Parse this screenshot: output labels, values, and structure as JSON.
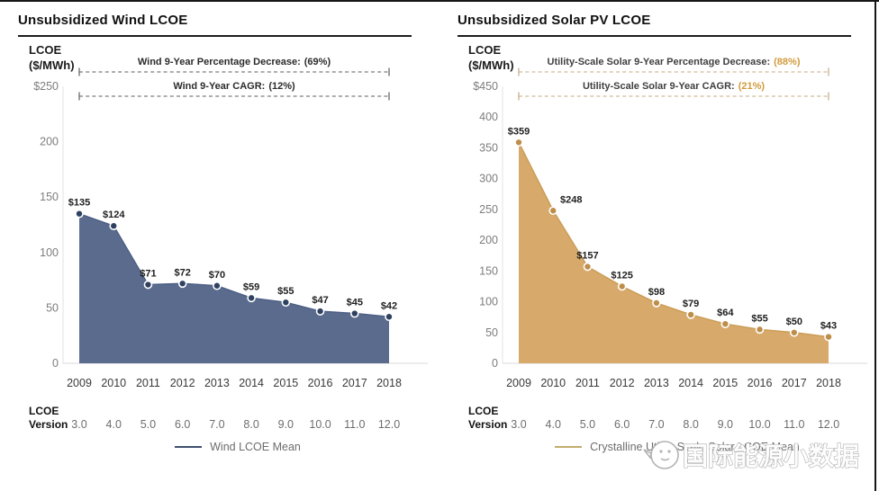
{
  "page": {
    "watermark_text": "国际能源小数据"
  },
  "chart_data": [
    {
      "type": "area",
      "title": "Unsubsidized Wind LCOE",
      "ylabel_line1": "LCOE",
      "ylabel_line2": "($/MWh)",
      "categories": [
        "2009",
        "2010",
        "2011",
        "2012",
        "2013",
        "2014",
        "2015",
        "2016",
        "2017",
        "2018"
      ],
      "values": [
        135,
        124,
        71,
        72,
        70,
        59,
        55,
        47,
        45,
        42
      ],
      "point_labels": [
        "$135",
        "$124",
        "$71",
        "$72",
        "$70",
        "$59",
        "$55",
        "$47",
        "$45",
        "$42"
      ],
      "ylim": [
        0,
        250
      ],
      "ytick_values": [
        250,
        200,
        150,
        100,
        50,
        0
      ],
      "ytick_labels": [
        "$250",
        "200",
        "150",
        "100",
        "50",
        "0"
      ],
      "annotations": [
        {
          "label": "Wind 9-Year Percentage Decrease:",
          "value": "(69%)"
        },
        {
          "label": "Wind 9-Year CAGR:",
          "value": "(12%)"
        }
      ],
      "version_label_line1": "LCOE",
      "version_label_line2": "Version",
      "versions": [
        "3.0",
        "4.0",
        "5.0",
        "6.0",
        "7.0",
        "8.0",
        "9.0",
        "10.0",
        "11.0",
        "12.0"
      ],
      "legend": "Wind LCOE Mean",
      "grid": false,
      "legend_position": "bottom-center",
      "colors": {
        "fill": "#5b6b8e",
        "line": "#4d5f85",
        "point": "#2e4160",
        "annotation_text": "#2b2b2b",
        "annotation_value": "#2b2b2b",
        "annotation_line": "#5c5c5c",
        "legend_line": "#3f4f6e"
      }
    },
    {
      "type": "area",
      "title": "Unsubsidized Solar PV LCOE",
      "ylabel_line1": "LCOE",
      "ylabel_line2": "($/MWh)",
      "categories": [
        "2009",
        "2010",
        "2011",
        "2012",
        "2013",
        "2014",
        "2015",
        "2016",
        "2017",
        "2018"
      ],
      "values": [
        359,
        248,
        157,
        125,
        98,
        79,
        64,
        55,
        50,
        43
      ],
      "point_labels": [
        "$359",
        "$248",
        "$157",
        "$125",
        "$98",
        "$79",
        "$64",
        "$55",
        "$50",
        "$43"
      ],
      "ylim": [
        0,
        450
      ],
      "ytick_values": [
        450,
        400,
        350,
        300,
        250,
        200,
        150,
        100,
        50,
        0
      ],
      "ytick_labels": [
        "$450",
        "400",
        "350",
        "300",
        "250",
        "200",
        "150",
        "100",
        "50",
        "0"
      ],
      "annotations": [
        {
          "label": "Utility-Scale Solar 9-Year Percentage Decrease:",
          "value": "(88%)"
        },
        {
          "label": "Utility-Scale Solar 9-Year CAGR:",
          "value": "(21%)"
        }
      ],
      "version_label_line1": "LCOE",
      "version_label_line2": "Version",
      "versions": [
        "3.0",
        "4.0",
        "5.0",
        "6.0",
        "7.0",
        "8.0",
        "9.0",
        "10.0",
        "11.0",
        "12.0"
      ],
      "legend": "Crystalline Utility-Scale Solar LCOE Mean",
      "grid": false,
      "legend_position": "bottom-center",
      "colors": {
        "fill": "#d7aa6b",
        "line": "#cb9d58",
        "point": "#bd8e4a",
        "annotation_text": "#3f3f3f",
        "annotation_value": "#d29b3c",
        "annotation_line": "#c3ab80",
        "legend_line": "#c2ac6d"
      }
    }
  ]
}
